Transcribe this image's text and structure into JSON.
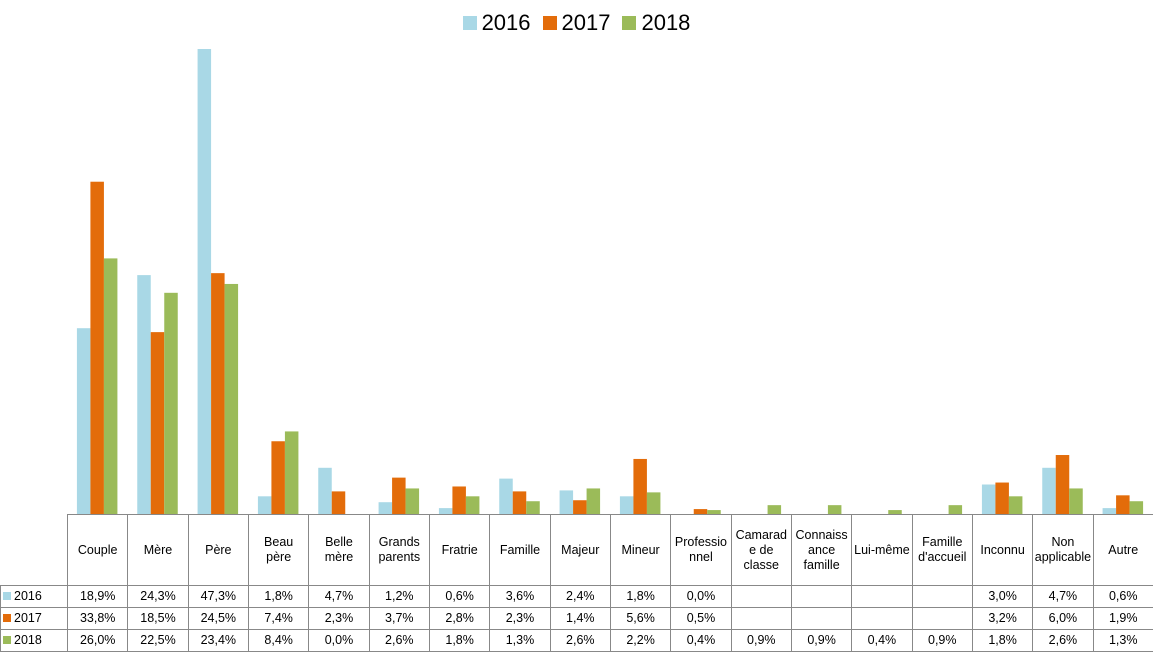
{
  "chart_data": {
    "type": "bar",
    "categories": [
      "Couple",
      "Mère",
      "Père",
      "Beau père",
      "Belle mère",
      "Grands parents",
      "Fratrie",
      "Famille",
      "Majeur",
      "Mineur",
      "Professionnel",
      "Camarade de classe",
      "Connaissance famille",
      "Lui-même",
      "Famille d'accueil",
      "Inconnu",
      "Non applicable",
      "Autre"
    ],
    "series": [
      {
        "name": "2016",
        "color": "#a9d8e6",
        "values": [
          18.9,
          24.3,
          47.3,
          1.8,
          4.7,
          1.2,
          0.6,
          3.6,
          2.4,
          1.8,
          0.0,
          null,
          null,
          null,
          null,
          3.0,
          4.7,
          0.6
        ],
        "value_labels": [
          "18,9%",
          "24,3%",
          "47,3%",
          "1,8%",
          "4,7%",
          "1,2%",
          "0,6%",
          "3,6%",
          "2,4%",
          "1,8%",
          "0,0%",
          null,
          null,
          null,
          null,
          "3,0%",
          "4,7%",
          "0,6%"
        ]
      },
      {
        "name": "2017",
        "color": "#e36c0a",
        "values": [
          33.8,
          18.5,
          24.5,
          7.4,
          2.3,
          3.7,
          2.8,
          2.3,
          1.4,
          5.6,
          0.5,
          null,
          null,
          null,
          null,
          3.2,
          6.0,
          1.9
        ],
        "value_labels": [
          "33,8%",
          "18,5%",
          "24,5%",
          "7,4%",
          "2,3%",
          "3,7%",
          "2,8%",
          "2,3%",
          "1,4%",
          "5,6%",
          "0,5%",
          null,
          null,
          null,
          null,
          "3,2%",
          "6,0%",
          "1,9%"
        ]
      },
      {
        "name": "2018",
        "color": "#9bbb59",
        "values": [
          26.0,
          22.5,
          23.4,
          8.4,
          0.0,
          2.6,
          1.8,
          1.3,
          2.6,
          2.2,
          0.4,
          0.9,
          0.9,
          0.4,
          0.9,
          1.8,
          2.6,
          1.3
        ],
        "value_labels": [
          "26,0%",
          "22,5%",
          "23,4%",
          "8,4%",
          "0,0%",
          "2,6%",
          "1,8%",
          "1,3%",
          "2,6%",
          "2,2%",
          "0,4%",
          "0,9%",
          "0,9%",
          "0,4%",
          "0,9%",
          "1,8%",
          "2,6%",
          "1,3%"
        ]
      }
    ],
    "legend": "top"
  }
}
